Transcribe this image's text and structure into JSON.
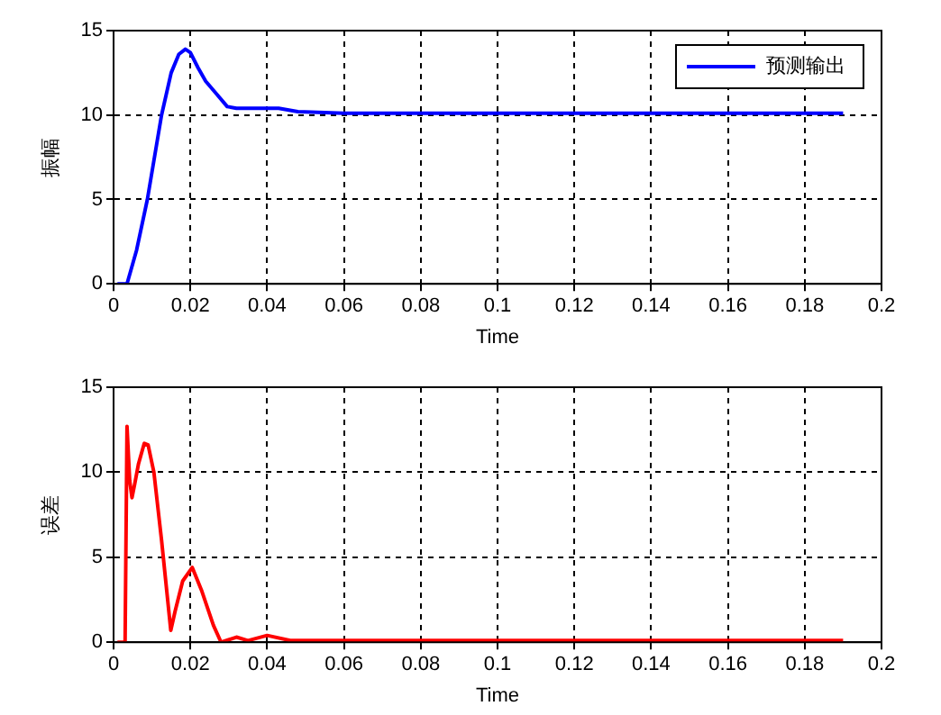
{
  "chart_data": [
    {
      "type": "line",
      "xlabel": "Time",
      "ylabel": "振幅",
      "xlim": [
        0,
        0.2
      ],
      "ylim": [
        0,
        15
      ],
      "xticks": [
        0,
        0.02,
        0.04,
        0.06,
        0.08,
        0.1,
        0.12,
        0.14,
        0.16,
        0.18,
        0.2
      ],
      "yticks": [
        0,
        5,
        10,
        15
      ],
      "grid": true,
      "legend": "top right",
      "line_style": "solid",
      "marker": "none",
      "series": [
        {
          "name": "预测输出",
          "color": "#0000ff",
          "x": [
            0.001,
            0.0035,
            0.006,
            0.0088,
            0.0125,
            0.015,
            0.017,
            0.0187,
            0.02,
            0.022,
            0.024,
            0.027,
            0.0296,
            0.032,
            0.036,
            0.043,
            0.048,
            0.06,
            0.1,
            0.15,
            0.19
          ],
          "values": [
            0,
            0,
            2,
            5,
            10,
            12.5,
            13.6,
            13.9,
            13.7,
            12.8,
            12,
            11.2,
            10.5,
            10.4,
            10.4,
            10.4,
            10.2,
            10.1,
            10.1,
            10.1,
            10.1
          ]
        }
      ]
    },
    {
      "type": "line",
      "xlabel": "Time",
      "ylabel": "误差",
      "xlim": [
        0,
        0.2
      ],
      "ylim": [
        0,
        15
      ],
      "xticks": [
        0,
        0.02,
        0.04,
        0.06,
        0.08,
        0.1,
        0.12,
        0.14,
        0.16,
        0.18,
        0.2
      ],
      "yticks": [
        0,
        5,
        10,
        15
      ],
      "grid": true,
      "legend": false,
      "line_style": "solid",
      "marker": "none",
      "series": [
        {
          "color": "#ff0000",
          "x": [
            0.001,
            0.003,
            0.0035,
            0.0042,
            0.0048,
            0.0055,
            0.0065,
            0.008,
            0.009,
            0.0105,
            0.0125,
            0.0149,
            0.016,
            0.018,
            0.0205,
            0.023,
            0.026,
            0.028,
            0.032,
            0.035,
            0.04,
            0.046,
            0.06,
            0.1,
            0.15,
            0.19
          ],
          "values": [
            0,
            0,
            12.7,
            9.5,
            8.5,
            9.3,
            10.5,
            11.7,
            11.6,
            10,
            6,
            0.7,
            1.8,
            3.6,
            4.4,
            3,
            1,
            0,
            0.3,
            0.1,
            0.4,
            0.1,
            0.1,
            0.1,
            0.1,
            0.1
          ]
        }
      ]
    }
  ]
}
